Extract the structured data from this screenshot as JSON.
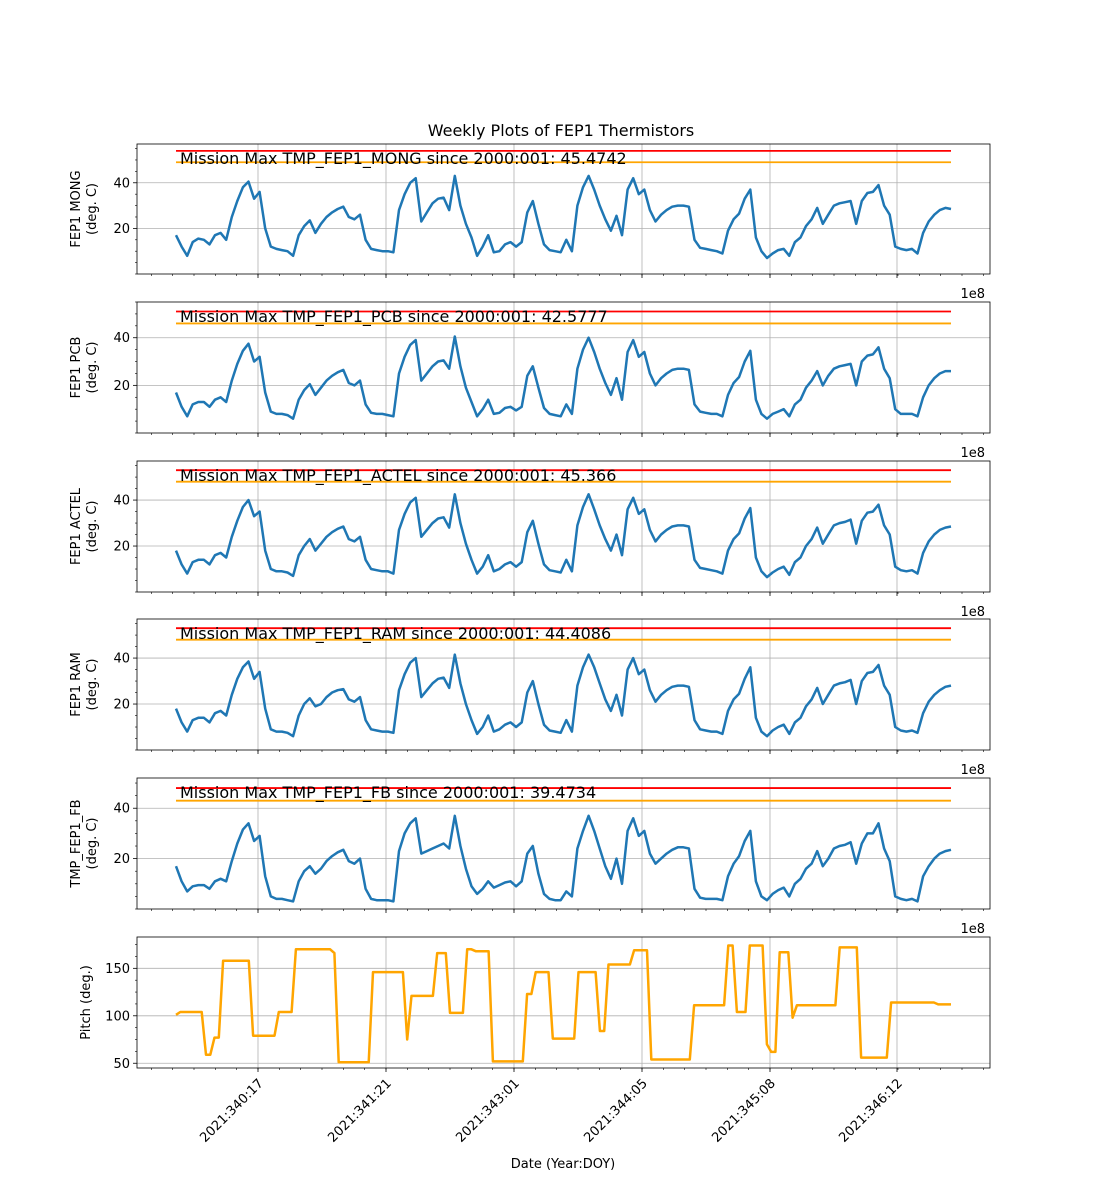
{
  "chart_data": {
    "type": "line",
    "title": "Weekly Plots of FEP1 Thermistors",
    "xlabel": "Date (Year:DOY)",
    "x_offset_label": "1e8",
    "x_ticks": [
      "2021:340:17",
      "2021:341:21",
      "2021:343:01",
      "2021:344:05",
      "2021:345:08",
      "2021:346:12"
    ],
    "grid": true,
    "panels": [
      {
        "ylabel_lines": [
          "FEP1 MONG",
          "(deg. C)"
        ],
        "annotation": "Mission Max TMP_FEP1_MONG since 2000:001: 45.4742",
        "ylim": [
          0,
          57
        ],
        "yticks": [
          20,
          40
        ],
        "limits": [
          {
            "value": 54,
            "color": "#ff0000"
          },
          {
            "value": 49,
            "color": "#ffa500"
          }
        ],
        "series": [
          {
            "color": "#1f77b4",
            "values": [
              17,
              12,
              8,
              14,
              15.5,
              15,
              13,
              17,
              18,
              15,
              25,
              32,
              38,
              40.5,
              33,
              36,
              20,
              12,
              11,
              10.5,
              10,
              8,
              17,
              21,
              23.5,
              18,
              22,
              25,
              27,
              28.5,
              29.5,
              25,
              24,
              26,
              15,
              11,
              10.5,
              10,
              10,
              9.5,
              28,
              35,
              40,
              42,
              23,
              27,
              31,
              33,
              33.5,
              28,
              43,
              30,
              22,
              16,
              8,
              12,
              17,
              9.5,
              10,
              13,
              14,
              12,
              14,
              27,
              32,
              22,
              13,
              10.5,
              10,
              9.5,
              15,
              10,
              30,
              38,
              43,
              37,
              30,
              24,
              19,
              25.5,
              17,
              37,
              42,
              35,
              37,
              28,
              23,
              26,
              28,
              29.5,
              30,
              30,
              29.5,
              15,
              11.5,
              11,
              10.5,
              10,
              9,
              19,
              24,
              26.5,
              33,
              37,
              16,
              10,
              7,
              9,
              10.5,
              11,
              8,
              14,
              16,
              21,
              24,
              29,
              22,
              26,
              30,
              31,
              31.5,
              32,
              22,
              32,
              35.5,
              36,
              39,
              30,
              26,
              12,
              11,
              10.5,
              11,
              9,
              18,
              23,
              26,
              28,
              29,
              28.5
            ]
          }
        ]
      },
      {
        "ylabel_lines": [
          "FEP1 PCB",
          "(deg. C)"
        ],
        "annotation": "Mission Max TMP_FEP1_PCB since 2000:001: 42.5777",
        "ylim": [
          0,
          55
        ],
        "yticks": [
          20,
          40
        ],
        "limits": [
          {
            "value": 51,
            "color": "#ff0000"
          },
          {
            "value": 46,
            "color": "#ffa500"
          }
        ],
        "series": [
          {
            "color": "#1f77b4",
            "values": [
              17,
              11,
              7,
              12,
              13,
              13,
              11,
              14,
              15,
              13,
              22,
              29,
              34.5,
              37.5,
              30,
              32,
              17,
              9,
              8,
              8,
              7.5,
              6,
              14,
              18,
              20.5,
              16,
              19,
              22,
              24,
              25.5,
              26.5,
              21,
              20,
              22,
              12,
              8.5,
              8,
              8,
              7.5,
              7,
              25,
              32,
              37,
              39,
              22,
              25,
              28,
              30,
              30.5,
              27,
              40.5,
              28,
              19,
              13,
              7,
              10,
              14,
              8,
              8.5,
              10.5,
              11,
              9.5,
              11,
              24,
              28,
              19,
              10.5,
              8,
              7.5,
              7,
              12,
              8,
              27,
              35,
              40,
              34,
              27,
              21,
              16,
              23,
              14,
              34,
              39,
              32,
              34,
              25,
              20,
              23,
              25,
              26.5,
              27,
              27,
              26.5,
              12,
              9,
              8.5,
              8,
              8,
              7,
              16,
              21,
              23.5,
              30,
              34.5,
              14,
              8,
              6,
              8,
              9,
              10,
              7,
              12,
              14,
              19,
              22,
              26,
              20,
              24,
              27,
              28,
              28.5,
              29,
              20,
              30,
              32.5,
              33,
              36,
              27,
              23,
              10,
              8,
              8,
              8,
              7,
              15,
              20,
              23,
              25,
              26,
              26
            ]
          }
        ]
      },
      {
        "ylabel_lines": [
          "FEP1 ACTEL",
          "(deg. C)"
        ],
        "annotation": "Mission Max TMP_FEP1_ACTEL since 2000:001: 45.366",
        "ylim": [
          0,
          57
        ],
        "yticks": [
          20,
          40
        ],
        "limits": [
          {
            "value": 53,
            "color": "#ff0000"
          },
          {
            "value": 48,
            "color": "#ffa500"
          }
        ],
        "series": [
          {
            "color": "#1f77b4",
            "values": [
              18,
              12,
              8,
              13,
              14,
              14,
              12,
              16,
              17,
              15,
              24,
              31,
              37,
              40,
              33,
              35,
              18,
              10,
              9,
              9,
              8.5,
              7,
              16,
              20,
              23,
              18,
              21,
              24,
              26,
              27.5,
              28.5,
              23,
              22,
              24,
              14,
              10,
              9.5,
              9,
              9,
              8,
              27,
              34,
              39,
              41,
              24,
              27,
              30,
              32,
              32.5,
              28,
              42.5,
              30,
              21,
              14,
              8,
              11,
              16,
              9,
              10,
              12,
              13,
              11,
              13,
              26,
              31,
              21,
              12,
              9.5,
              9,
              8.5,
              14,
              9,
              29,
              37,
              42.5,
              36,
              29,
              23,
              18,
              25,
              16,
              36,
              41,
              34,
              36,
              27,
              22,
              25,
              27,
              28.5,
              29,
              29,
              28.5,
              14,
              10.5,
              10,
              9.5,
              9,
              8,
              18,
              23,
              25.5,
              32,
              36.5,
              15,
              9,
              6.5,
              8.5,
              10,
              11,
              7.5,
              13,
              15,
              20,
              23,
              28,
              21,
              25,
              29,
              30,
              30.5,
              31.5,
              21,
              31,
              34.5,
              35,
              38,
              29,
              25,
              11,
              9.5,
              9,
              9.5,
              8,
              17,
              22,
              25,
              27,
              28,
              28.5
            ]
          }
        ]
      },
      {
        "ylabel_lines": [
          "FEP1 RAM",
          "(deg. C)"
        ],
        "annotation": "Mission Max TMP_FEP1_RAM since 2000:001: 44.4086",
        "ylim": [
          0,
          57
        ],
        "yticks": [
          20,
          40
        ],
        "limits": [
          {
            "value": 53,
            "color": "#ff0000"
          },
          {
            "value": 48,
            "color": "#ffa500"
          }
        ],
        "series": [
          {
            "color": "#1f77b4",
            "values": [
              18,
              12,
              8,
              13,
              14,
              14,
              12,
              16,
              17,
              15,
              24,
              31,
              36,
              38.5,
              31,
              34,
              18,
              9,
              8,
              8,
              7.5,
              6,
              15,
              20,
              22.5,
              19,
              20,
              23,
              25,
              26,
              26.5,
              22,
              21,
              23,
              13,
              9,
              8.5,
              8,
              8,
              7.5,
              26,
              33,
              38,
              40,
              23,
              26,
              29,
              31,
              31.5,
              27,
              41.5,
              29,
              20,
              13,
              7,
              10,
              15,
              8,
              9,
              11,
              12,
              10,
              12,
              25,
              30,
              20,
              11,
              8.5,
              8,
              7.5,
              13,
              8,
              28,
              36,
              41.5,
              36,
              29,
              22,
              17,
              24,
              15,
              35,
              40,
              33,
              35,
              26,
              21,
              24,
              26,
              27.5,
              28,
              28,
              27.5,
              13,
              9,
              8.5,
              8,
              8,
              7,
              17,
              22,
              24.5,
              31,
              36,
              14,
              8,
              6,
              8.5,
              10,
              11,
              7,
              12,
              14,
              19,
              22,
              27,
              20,
              24,
              28,
              29,
              29.5,
              30.5,
              20,
              30,
              33.5,
              34,
              37,
              28,
              24,
              10,
              8.5,
              8,
              8.5,
              7.5,
              16,
              21,
              24,
              26,
              27.5,
              28
            ]
          }
        ]
      },
      {
        "ylabel_lines": [
          "TMP_FEP1_FB",
          "(deg. C)"
        ],
        "annotation": "Mission Max TMP_FEP1_FB since 2000:001: 39.4734",
        "ylim": [
          0,
          52
        ],
        "yticks": [
          20,
          40
        ],
        "limits": [
          {
            "value": 48,
            "color": "#ff0000"
          },
          {
            "value": 43,
            "color": "#ffa500"
          }
        ],
        "series": [
          {
            "color": "#1f77b4",
            "values": [
              17,
              11,
              7,
              9,
              9.5,
              9.5,
              8,
              11,
              12,
              11,
              19,
              26,
              31.5,
              34,
              27,
              29,
              13,
              5,
              4,
              4,
              3.5,
              3,
              11,
              15,
              17,
              14,
              16,
              19,
              21,
              22.5,
              23.5,
              19,
              18,
              20,
              8,
              4,
              3.5,
              3.5,
              3.5,
              3,
              23,
              30,
              34,
              36,
              22,
              23,
              24,
              25,
              26,
              24,
              37,
              25,
              16,
              9,
              6,
              8,
              11,
              8.5,
              9.5,
              10.5,
              11,
              9,
              11,
              22,
              25,
              14,
              6,
              4,
              3.5,
              3.5,
              7,
              5,
              24,
              31,
              37,
              31,
              24,
              17,
              12,
              20,
              10,
              31,
              36,
              29,
              31,
              22,
              18,
              20,
              22,
              23.5,
              24.5,
              24.5,
              24,
              8,
              4.5,
              4,
              4,
              4,
              3.5,
              13,
              18,
              21,
              27,
              31,
              11,
              5,
              3.5,
              6,
              7.5,
              8.5,
              5,
              10,
              12,
              16,
              18,
              23,
              17,
              20,
              24,
              25,
              25.5,
              26.5,
              18,
              26,
              30,
              30,
              34,
              24,
              19,
              5,
              4,
              3.5,
              4,
              3,
              13,
              17,
              20,
              22,
              23,
              23.5
            ]
          }
        ]
      },
      {
        "ylabel_lines": [
          "Pitch (deg.)"
        ],
        "annotation": "",
        "ylim": [
          45,
          183
        ],
        "yticks": [
          50,
          100,
          150
        ],
        "limits": [],
        "series": [
          {
            "color": "#ffa500",
            "values": [
              101,
              104,
              104,
              104,
              104,
              104,
              104,
              59,
              59,
              77,
              77,
              158,
              158,
              158,
              158,
              158,
              158,
              158,
              79,
              79,
              79,
              79,
              79,
              79,
              104,
              104,
              104,
              104,
              170,
              170,
              170,
              170,
              170,
              170,
              170,
              170,
              170,
              166,
              51,
              51,
              51,
              51,
              51,
              51,
              51,
              51,
              146,
              146,
              146,
              146,
              146,
              146,
              146,
              146,
              75,
              121,
              121,
              121,
              121,
              121,
              121,
              166,
              166,
              166,
              103,
              103,
              103,
              103,
              170,
              170,
              168,
              168,
              168,
              168,
              52,
              52,
              52,
              52,
              52,
              52,
              52,
              52,
              123,
              123,
              146,
              146,
              146,
              146,
              76,
              76,
              76,
              76,
              76,
              76,
              146,
              146,
              146,
              146,
              146,
              84,
              84,
              154,
              154,
              154,
              154,
              154,
              154,
              169,
              169,
              169,
              169,
              54,
              54,
              54,
              54,
              54,
              54,
              54,
              54,
              54,
              54,
              111,
              111,
              111,
              111,
              111,
              111,
              111,
              111,
              174,
              174,
              104,
              104,
              104,
              174,
              174,
              174,
              174,
              70,
              62,
              62,
              167,
              167,
              167,
              98,
              111,
              111,
              111,
              111,
              111,
              111,
              111,
              111,
              111,
              111,
              172,
              172,
              172,
              172,
              172,
              56,
              56,
              56,
              56,
              56,
              56,
              56,
              114,
              114,
              114,
              114,
              114,
              114,
              114,
              114,
              114,
              114,
              114,
              112,
              112,
              112,
              112
            ]
          }
        ]
      }
    ]
  }
}
